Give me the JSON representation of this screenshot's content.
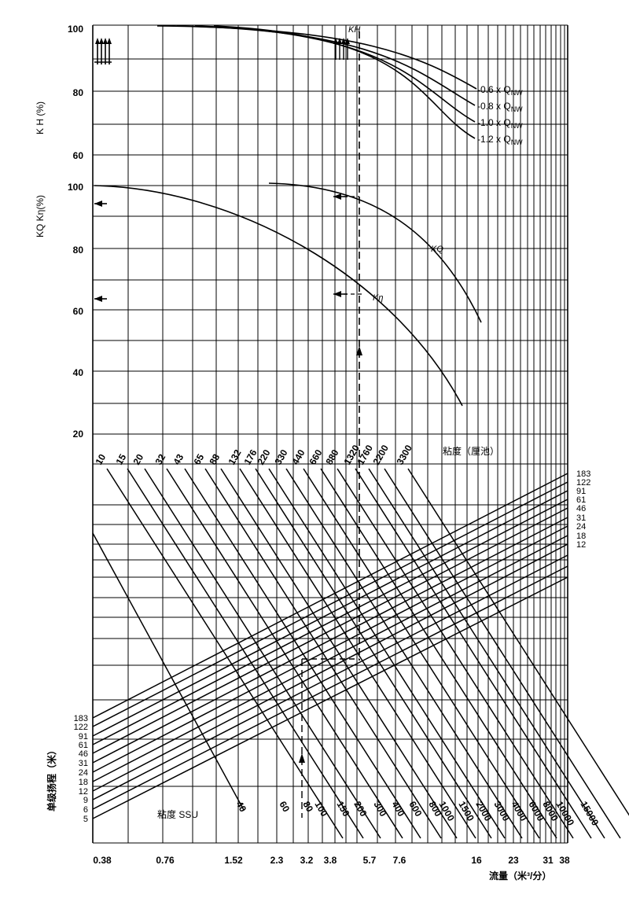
{
  "chart_data": {
    "type": "line",
    "upper_panel": {
      "kh_axis_label": "K H (%)",
      "kh_ticks": [
        "100",
        "80",
        "60"
      ],
      "kq_axis_label": "KQ Kη(%)",
      "kq_ticks": [
        "100",
        "80",
        "60",
        "40",
        "20"
      ],
      "kh_curve_label": "KH",
      "kh_series": [
        {
          "name": "0.6 x QNW",
          "label_prefix": "-0.6 x Q",
          "label_sub": "NW"
        },
        {
          "name": "0.8 x QNW",
          "label_prefix": "-0.8 x Q",
          "label_sub": "NW"
        },
        {
          "name": "1.0 x QNW",
          "label_prefix": "-1.0 x Q",
          "label_sub": "NW"
        },
        {
          "name": "1.2 x QNW",
          "label_prefix": "-1.2 x Q",
          "label_sub": "NW"
        }
      ],
      "kq_series": [
        {
          "name": "KQ",
          "label": "KQ"
        },
        {
          "name": "Kη",
          "label": "Kη"
        }
      ]
    },
    "viscosity_cst": {
      "label": "粘度（厘池）",
      "values": [
        "10",
        "15",
        "20",
        "32",
        "43",
        "65",
        "88",
        "132",
        "176",
        "220",
        "330",
        "440",
        "660",
        "880",
        "1320",
        "1760",
        "2200",
        "3300"
      ]
    },
    "viscosity_ssu": {
      "label": "粘度 SSU",
      "values": [
        "40",
        "60",
        "80",
        "100",
        "150",
        "200",
        "300",
        "400",
        "600",
        "800",
        "1000",
        "1500",
        "2000",
        "3000",
        "4000",
        "6000",
        "8000",
        "10000",
        "15000"
      ]
    },
    "head": {
      "label": "单级扬程（米）",
      "left_values": [
        "183",
        "122",
        "91",
        "61",
        "46",
        "31",
        "24",
        "18",
        "12",
        "9",
        "6",
        "5"
      ],
      "right_values": [
        "183",
        "122",
        "91",
        "61",
        "46",
        "31",
        "24",
        "18",
        "12"
      ]
    },
    "flow": {
      "label": "流量（米³/分）",
      "values": [
        "0.38",
        "0.76",
        "1.52",
        "2.3",
        "3.2",
        "3.8",
        "5.7",
        "7.6",
        "16",
        "23",
        "31",
        "38"
      ]
    },
    "grid": true
  }
}
